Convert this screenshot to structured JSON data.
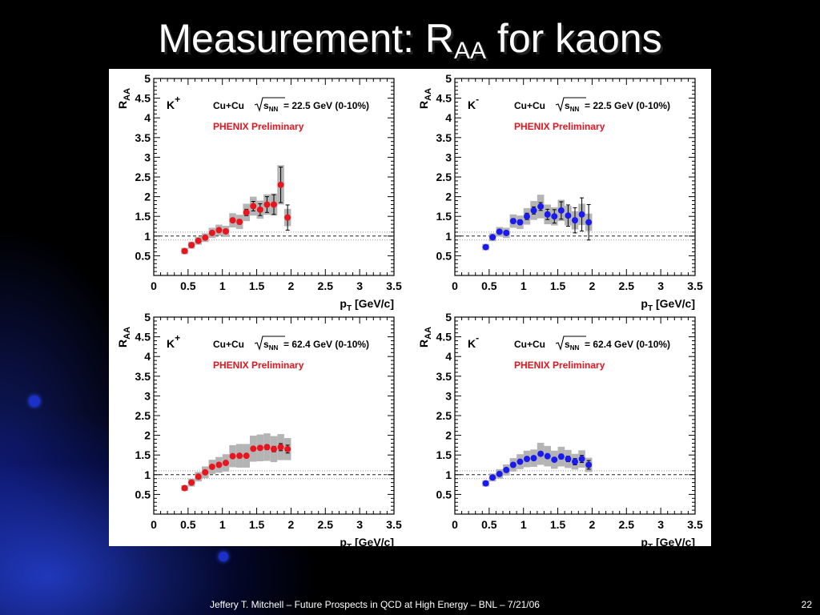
{
  "slide": {
    "title_main": "Measurement: R",
    "title_sub": "AA",
    "title_tail": " for kaons",
    "footer": "Jeffery T. Mitchell – Future Prospects in QCD at High Energy – BNL – 7/21/06",
    "page_number": "22"
  },
  "colors": {
    "kplus": "#e8141e",
    "kminus": "#1a1aee",
    "sys_band": "#b4b4b4"
  },
  "chart_data": [
    {
      "type": "scatter",
      "particle": "K",
      "particle_sup": "+",
      "system": "Cu+Cu",
      "energy_label": " = 22.5 GeV (0-10%)",
      "preliminary": "PHENIX Preliminary",
      "ylabel_main": "R",
      "ylabel_sub": "AA",
      "xlabel_main": "p",
      "xlabel_sub": "T",
      "xlabel_unit": " [GeV/c]",
      "xlim": [
        0,
        3.5
      ],
      "ylim": [
        0,
        5
      ],
      "xticks": [
        "0",
        "0.5",
        "1",
        "1.5",
        "2",
        "2.5",
        "3",
        "3.5"
      ],
      "yticks": [
        "0.5",
        "1",
        "1.5",
        "2",
        "2.5",
        "3",
        "3.5",
        "4",
        "4.5",
        "5"
      ],
      "reference_line": 1.0,
      "normalization_band": [
        0.9,
        1.1
      ],
      "color": "kplus",
      "x": [
        0.45,
        0.55,
        0.65,
        0.75,
        0.85,
        0.95,
        1.05,
        1.15,
        1.25,
        1.35,
        1.45,
        1.55,
        1.65,
        1.75,
        1.85,
        1.95
      ],
      "y": [
        0.62,
        0.77,
        0.88,
        0.96,
        1.08,
        1.15,
        1.12,
        1.4,
        1.36,
        1.6,
        1.76,
        1.67,
        1.8,
        1.8,
        2.3,
        1.47
      ],
      "stat": [
        0.03,
        0.03,
        0.03,
        0.03,
        0.03,
        0.04,
        0.04,
        0.05,
        0.06,
        0.08,
        0.12,
        0.15,
        0.2,
        0.25,
        0.45,
        0.32
      ],
      "sys": [
        0.08,
        0.09,
        0.1,
        0.11,
        0.13,
        0.14,
        0.14,
        0.18,
        0.18,
        0.22,
        0.24,
        0.23,
        0.26,
        0.28,
        0.5,
        0.22
      ]
    },
    {
      "type": "scatter",
      "particle": "K",
      "particle_sup": "-",
      "system": "Cu+Cu",
      "energy_label": " = 22.5 GeV (0-10%)",
      "preliminary": "PHENIX Preliminary",
      "ylabel_main": "R",
      "ylabel_sub": "AA",
      "xlabel_main": "p",
      "xlabel_sub": "T",
      "xlabel_unit": " [GeV/c]",
      "xlim": [
        0,
        3.5
      ],
      "ylim": [
        0,
        5
      ],
      "xticks": [
        "0",
        "0.5",
        "1",
        "1.5",
        "2",
        "2.5",
        "3",
        "3.5"
      ],
      "yticks": [
        "0.5",
        "1",
        "1.5",
        "2",
        "2.5",
        "3",
        "3.5",
        "4",
        "4.5",
        "5"
      ],
      "reference_line": 1.0,
      "normalization_band": [
        0.9,
        1.1
      ],
      "color": "kminus",
      "x": [
        0.45,
        0.55,
        0.65,
        0.75,
        0.85,
        0.95,
        1.05,
        1.15,
        1.25,
        1.35,
        1.45,
        1.55,
        1.65,
        1.75,
        1.85,
        1.95
      ],
      "y": [
        0.72,
        0.97,
        1.11,
        1.08,
        1.38,
        1.35,
        1.5,
        1.65,
        1.75,
        1.55,
        1.5,
        1.65,
        1.52,
        1.4,
        1.55,
        1.35
      ],
      "stat": [
        0.04,
        0.04,
        0.04,
        0.05,
        0.06,
        0.06,
        0.08,
        0.09,
        0.1,
        0.13,
        0.17,
        0.22,
        0.27,
        0.32,
        0.42,
        0.45
      ],
      "sys": [
        0.08,
        0.1,
        0.12,
        0.13,
        0.17,
        0.17,
        0.21,
        0.24,
        0.3,
        0.25,
        0.23,
        0.27,
        0.25,
        0.23,
        0.27,
        0.22
      ]
    },
    {
      "type": "scatter",
      "particle": "K",
      "particle_sup": "+",
      "system": "Cu+Cu",
      "energy_label": " = 62.4 GeV (0-10%)",
      "preliminary": "PHENIX Preliminary",
      "ylabel_main": "R",
      "ylabel_sub": "AA",
      "xlabel_main": "p",
      "xlabel_sub": "T",
      "xlabel_unit": " [GeV/c]",
      "xlim": [
        0,
        3.5
      ],
      "ylim": [
        0,
        5
      ],
      "xticks": [
        "0",
        "0.5",
        "1",
        "1.5",
        "2",
        "2.5",
        "3",
        "3.5"
      ],
      "yticks": [
        "0.5",
        "1",
        "1.5",
        "2",
        "2.5",
        "3",
        "3.5",
        "4",
        "4.5",
        "5"
      ],
      "reference_line": 1.0,
      "normalization_band": [
        0.9,
        1.1
      ],
      "color": "kplus",
      "x": [
        0.45,
        0.55,
        0.65,
        0.75,
        0.85,
        0.95,
        1.05,
        1.15,
        1.25,
        1.35,
        1.45,
        1.55,
        1.65,
        1.75,
        1.85,
        1.95
      ],
      "y": [
        0.66,
        0.8,
        0.95,
        1.06,
        1.2,
        1.25,
        1.3,
        1.47,
        1.48,
        1.48,
        1.66,
        1.68,
        1.7,
        1.65,
        1.7,
        1.65
      ],
      "stat": [
        0.02,
        0.02,
        0.02,
        0.02,
        0.02,
        0.03,
        0.03,
        0.03,
        0.03,
        0.04,
        0.05,
        0.05,
        0.06,
        0.07,
        0.09,
        0.1
      ],
      "sys": [
        0.07,
        0.1,
        0.12,
        0.15,
        0.18,
        0.2,
        0.22,
        0.28,
        0.3,
        0.3,
        0.33,
        0.34,
        0.35,
        0.33,
        0.33,
        0.28
      ]
    },
    {
      "type": "scatter",
      "particle": "K",
      "particle_sup": "-",
      "system": "Cu+Cu",
      "energy_label": " = 62.4 GeV (0-10%)",
      "preliminary": "PHENIX Preliminary",
      "ylabel_main": "R",
      "ylabel_sub": "AA",
      "xlabel_main": "p",
      "xlabel_sub": "T",
      "xlabel_unit": " [GeV/c]",
      "xlim": [
        0,
        3.5
      ],
      "ylim": [
        0,
        5
      ],
      "xticks": [
        "0",
        "0.5",
        "1",
        "1.5",
        "2",
        "2.5",
        "3",
        "3.5"
      ],
      "yticks": [
        "0.5",
        "1",
        "1.5",
        "2",
        "2.5",
        "3",
        "3.5",
        "4",
        "4.5",
        "5"
      ],
      "reference_line": 1.0,
      "normalization_band": [
        0.9,
        1.1
      ],
      "color": "kminus",
      "x": [
        0.45,
        0.55,
        0.65,
        0.75,
        0.85,
        0.95,
        1.05,
        1.15,
        1.25,
        1.35,
        1.45,
        1.55,
        1.65,
        1.75,
        1.85,
        1.95
      ],
      "y": [
        0.78,
        0.93,
        1.02,
        1.12,
        1.25,
        1.33,
        1.4,
        1.42,
        1.53,
        1.47,
        1.38,
        1.46,
        1.4,
        1.33,
        1.4,
        1.25
      ],
      "stat": [
        0.02,
        0.02,
        0.02,
        0.02,
        0.03,
        0.03,
        0.03,
        0.04,
        0.04,
        0.05,
        0.05,
        0.06,
        0.07,
        0.08,
        0.09,
        0.11
      ],
      "sys": [
        0.08,
        0.1,
        0.12,
        0.14,
        0.17,
        0.19,
        0.21,
        0.22,
        0.28,
        0.26,
        0.23,
        0.25,
        0.23,
        0.2,
        0.22,
        0.18
      ]
    }
  ]
}
